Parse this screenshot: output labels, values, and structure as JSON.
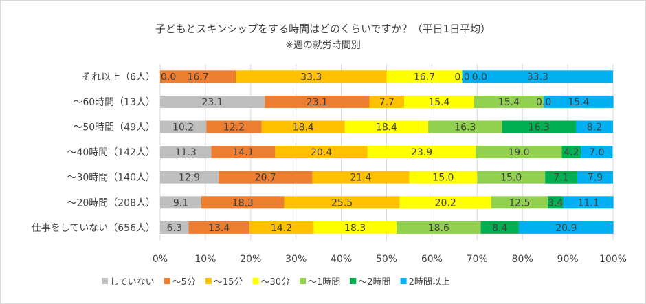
{
  "chart_data": {
    "type": "bar",
    "orientation": "horizontal",
    "stacked": "percent",
    "title": "子どもとスキンシップをする時間はどのくらいですか？（平日1日平均）",
    "subtitle": "※週の就労時間別",
    "categories": [
      "それ以上（6人）",
      "～60時間（13人）",
      "～50時間（49人）",
      "～40時間（142人）",
      "～30時間（140人）",
      "～20時間（208人）",
      "仕事をしていない（656人）"
    ],
    "series": [
      {
        "name": "していない",
        "color": "#bfbfbf",
        "values": [
          0.0,
          23.1,
          10.2,
          11.3,
          12.9,
          9.1,
          6.3
        ]
      },
      {
        "name": "～5分",
        "color": "#ed7d31",
        "values": [
          16.7,
          23.1,
          12.2,
          14.1,
          20.7,
          18.3,
          13.4
        ]
      },
      {
        "name": "～15分",
        "color": "#ffc000",
        "values": [
          33.3,
          7.7,
          18.4,
          20.4,
          21.4,
          25.5,
          14.2
        ]
      },
      {
        "name": "～30分",
        "color": "#ffff00",
        "values": [
          16.7,
          15.4,
          18.4,
          23.9,
          15.0,
          20.2,
          18.3
        ]
      },
      {
        "name": "～1時間",
        "color": "#92d050",
        "values": [
          0.0,
          15.4,
          16.3,
          19.0,
          15.0,
          12.5,
          18.6
        ]
      },
      {
        "name": "～2時間",
        "color": "#00b050",
        "values": [
          0.0,
          0.0,
          16.3,
          4.2,
          7.1,
          3.4,
          8.4
        ]
      },
      {
        "name": "2時間以上",
        "color": "#00b0f0",
        "values": [
          33.3,
          15.4,
          8.2,
          7.0,
          7.9,
          11.1,
          20.9
        ]
      }
    ],
    "xlim": [
      0,
      100
    ],
    "xticks": [
      "0%",
      "10%",
      "20%",
      "30%",
      "40%",
      "50%",
      "60%",
      "70%",
      "80%",
      "90%",
      "100%"
    ],
    "grid": true,
    "legend": "bottom",
    "data_labels": true
  }
}
